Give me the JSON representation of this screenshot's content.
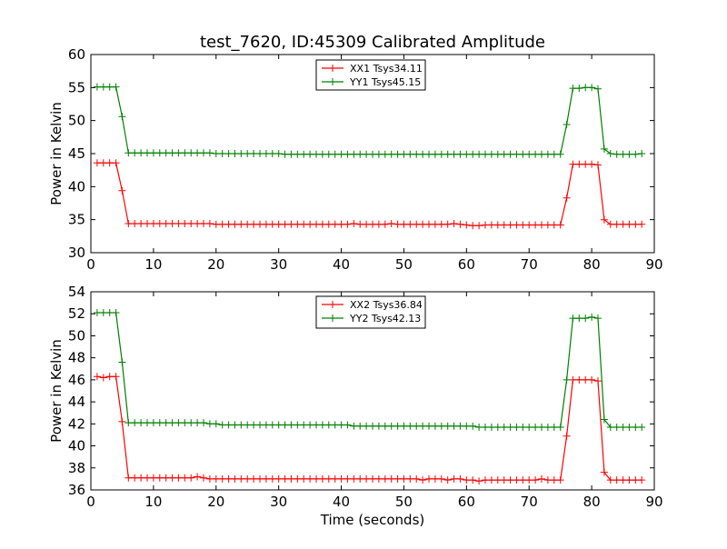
{
  "chart_data": [
    {
      "type": "line",
      "title": "test_7620, ID:45309 Calibrated Amplitude",
      "xlabel": "",
      "ylabel": "Power in Kelvin",
      "xlim": [
        0,
        90
      ],
      "ylim": [
        30,
        60
      ],
      "xticks": [
        "0",
        "10",
        "20",
        "30",
        "40",
        "50",
        "60",
        "70",
        "80",
        "90"
      ],
      "yticks": [
        "30",
        "35",
        "40",
        "45",
        "50",
        "55",
        "60"
      ],
      "legend_position": "top-center",
      "grid": false,
      "x": [
        1,
        2,
        3,
        4,
        5,
        6,
        7,
        8,
        9,
        10,
        11,
        12,
        13,
        14,
        15,
        16,
        17,
        18,
        19,
        20,
        21,
        22,
        23,
        24,
        25,
        26,
        27,
        28,
        29,
        30,
        31,
        32,
        33,
        34,
        35,
        36,
        37,
        38,
        39,
        40,
        41,
        42,
        43,
        44,
        45,
        46,
        47,
        48,
        49,
        50,
        51,
        52,
        53,
        54,
        55,
        56,
        57,
        58,
        59,
        60,
        61,
        62,
        63,
        64,
        65,
        66,
        67,
        68,
        69,
        70,
        71,
        72,
        73,
        74,
        75,
        76,
        77,
        78,
        79,
        80,
        81,
        82,
        83,
        84,
        85,
        86,
        87,
        88
      ],
      "series": [
        {
          "name": "XX1 Tsys34.11",
          "color": "#ff0000",
          "values": [
            43.6,
            43.6,
            43.6,
            43.6,
            39.4,
            34.4,
            34.4,
            34.4,
            34.4,
            34.4,
            34.4,
            34.4,
            34.4,
            34.4,
            34.4,
            34.4,
            34.4,
            34.4,
            34.4,
            34.3,
            34.3,
            34.3,
            34.3,
            34.3,
            34.3,
            34.3,
            34.3,
            34.3,
            34.3,
            34.3,
            34.3,
            34.3,
            34.3,
            34.3,
            34.3,
            34.3,
            34.3,
            34.3,
            34.3,
            34.3,
            34.3,
            34.4,
            34.3,
            34.3,
            34.3,
            34.3,
            34.3,
            34.4,
            34.3,
            34.3,
            34.3,
            34.3,
            34.3,
            34.3,
            34.3,
            34.3,
            34.3,
            34.4,
            34.3,
            34.2,
            34.1,
            34.1,
            34.2,
            34.2,
            34.2,
            34.2,
            34.2,
            34.2,
            34.2,
            34.2,
            34.2,
            34.2,
            34.2,
            34.2,
            34.2,
            38.3,
            43.4,
            43.4,
            43.4,
            43.4,
            43.3,
            35.0,
            34.3,
            34.3,
            34.3,
            34.3,
            34.3,
            34.3
          ]
        },
        {
          "name": "YY1 Tsys45.15",
          "color": "#008000",
          "values": [
            55.1,
            55.1,
            55.1,
            55.1,
            50.6,
            45.1,
            45.1,
            45.1,
            45.1,
            45.1,
            45.1,
            45.1,
            45.1,
            45.1,
            45.1,
            45.1,
            45.1,
            45.1,
            45.1,
            45.0,
            45.0,
            45.0,
            45.0,
            45.0,
            45.0,
            45.0,
            45.0,
            45.0,
            45.0,
            45.0,
            44.9,
            44.9,
            44.9,
            44.9,
            44.9,
            44.9,
            44.9,
            44.9,
            44.9,
            44.9,
            44.9,
            44.9,
            44.9,
            44.9,
            44.9,
            44.9,
            44.9,
            44.9,
            44.9,
            44.9,
            44.9,
            44.9,
            44.9,
            44.9,
            44.9,
            44.9,
            44.9,
            44.9,
            44.9,
            44.9,
            44.9,
            44.9,
            44.9,
            44.9,
            44.9,
            44.9,
            44.9,
            44.9,
            44.9,
            44.9,
            44.9,
            44.9,
            44.9,
            44.9,
            44.9,
            49.4,
            54.9,
            54.9,
            55.0,
            55.0,
            54.8,
            45.7,
            45.0,
            44.9,
            44.9,
            44.9,
            44.9,
            45.0
          ]
        }
      ]
    },
    {
      "type": "line",
      "title": "",
      "xlabel": "Time (seconds)",
      "ylabel": "Power in Kelvin",
      "xlim": [
        0,
        90
      ],
      "ylim": [
        36,
        54
      ],
      "xticks": [
        "0",
        "10",
        "20",
        "30",
        "40",
        "50",
        "60",
        "70",
        "80",
        "90"
      ],
      "yticks": [
        "36",
        "38",
        "40",
        "42",
        "44",
        "46",
        "48",
        "50",
        "52",
        "54"
      ],
      "legend_position": "top-center",
      "grid": false,
      "x": [
        1,
        2,
        3,
        4,
        5,
        6,
        7,
        8,
        9,
        10,
        11,
        12,
        13,
        14,
        15,
        16,
        17,
        18,
        19,
        20,
        21,
        22,
        23,
        24,
        25,
        26,
        27,
        28,
        29,
        30,
        31,
        32,
        33,
        34,
        35,
        36,
        37,
        38,
        39,
        40,
        41,
        42,
        43,
        44,
        45,
        46,
        47,
        48,
        49,
        50,
        51,
        52,
        53,
        54,
        55,
        56,
        57,
        58,
        59,
        60,
        61,
        62,
        63,
        64,
        65,
        66,
        67,
        68,
        69,
        70,
        71,
        72,
        73,
        74,
        75,
        76,
        77,
        78,
        79,
        80,
        81,
        82,
        83,
        84,
        85,
        86,
        87,
        88
      ],
      "series": [
        {
          "name": "XX2 Tsys36.84",
          "color": "#ff0000",
          "values": [
            46.3,
            46.2,
            46.3,
            46.3,
            42.2,
            37.1,
            37.1,
            37.1,
            37.1,
            37.1,
            37.1,
            37.1,
            37.1,
            37.1,
            37.1,
            37.1,
            37.2,
            37.1,
            37.0,
            37.0,
            37.0,
            37.0,
            37.0,
            37.0,
            37.0,
            37.0,
            37.0,
            37.0,
            37.0,
            37.0,
            37.0,
            37.0,
            37.0,
            37.0,
            37.0,
            37.0,
            37.0,
            37.0,
            37.0,
            37.0,
            37.0,
            37.0,
            37.0,
            37.0,
            37.0,
            37.0,
            37.0,
            37.0,
            37.0,
            37.0,
            37.0,
            37.0,
            36.9,
            37.0,
            37.0,
            37.0,
            36.9,
            37.0,
            37.0,
            36.9,
            36.9,
            36.8,
            36.9,
            36.9,
            36.9,
            36.9,
            36.9,
            36.9,
            36.9,
            36.9,
            36.9,
            37.0,
            36.9,
            36.9,
            36.9,
            40.9,
            46.0,
            46.0,
            46.0,
            46.0,
            45.9,
            37.6,
            36.9,
            36.9,
            36.9,
            36.9,
            36.9,
            36.9
          ]
        },
        {
          "name": "YY2 Tsys42.13",
          "color": "#008000",
          "values": [
            52.1,
            52.1,
            52.1,
            52.1,
            47.6,
            42.1,
            42.1,
            42.1,
            42.1,
            42.1,
            42.1,
            42.1,
            42.1,
            42.1,
            42.1,
            42.1,
            42.1,
            42.1,
            42.0,
            42.0,
            41.9,
            41.9,
            41.9,
            41.9,
            41.9,
            41.9,
            41.9,
            41.9,
            41.9,
            41.9,
            41.9,
            41.9,
            41.9,
            41.9,
            41.9,
            41.9,
            41.9,
            41.9,
            41.9,
            41.9,
            41.9,
            41.8,
            41.8,
            41.8,
            41.8,
            41.8,
            41.8,
            41.8,
            41.8,
            41.8,
            41.8,
            41.8,
            41.8,
            41.8,
            41.8,
            41.8,
            41.8,
            41.8,
            41.8,
            41.8,
            41.8,
            41.7,
            41.7,
            41.7,
            41.7,
            41.7,
            41.7,
            41.7,
            41.7,
            41.7,
            41.7,
            41.7,
            41.7,
            41.7,
            41.7,
            46.0,
            51.6,
            51.6,
            51.6,
            51.7,
            51.6,
            42.4,
            41.7,
            41.7,
            41.7,
            41.7,
            41.7,
            41.7
          ]
        }
      ]
    }
  ]
}
